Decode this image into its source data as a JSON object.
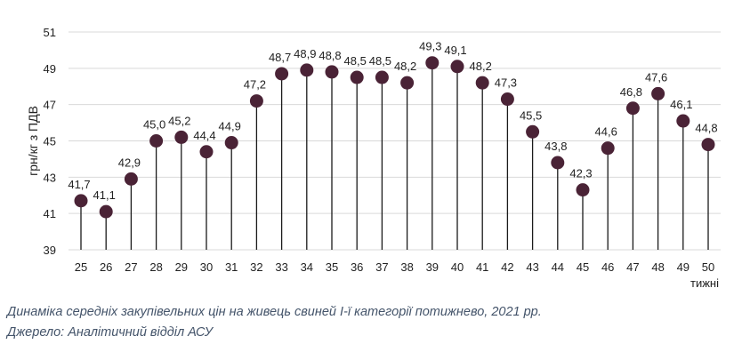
{
  "chart_data": {
    "type": "lollipop",
    "title": "",
    "xlabel": "тижні",
    "ylabel": "грн/кг з ПДВ",
    "ylim": [
      39,
      51
    ],
    "yticks": [
      39,
      41,
      43,
      45,
      47,
      49,
      51
    ],
    "grid": true,
    "categories": [
      "25",
      "26",
      "27",
      "28",
      "29",
      "30",
      "31",
      "32",
      "33",
      "34",
      "35",
      "36",
      "37",
      "38",
      "39",
      "40",
      "41",
      "42",
      "43",
      "44",
      "45",
      "46",
      "47",
      "48",
      "49",
      "50"
    ],
    "values": [
      41.7,
      41.1,
      42.9,
      45.0,
      45.2,
      44.4,
      44.9,
      47.2,
      48.7,
      48.9,
      48.8,
      48.5,
      48.5,
      48.2,
      49.3,
      49.1,
      48.2,
      47.3,
      45.5,
      43.8,
      42.3,
      44.6,
      46.8,
      47.6,
      46.1,
      44.8
    ],
    "labels": [
      "41,7",
      "41,1",
      "42,9",
      "45,0",
      "45,2",
      "44,4",
      "44,9",
      "47,2",
      "48,7",
      "48,9",
      "48,8",
      "48,5",
      "48,5",
      "48,2",
      "49,3",
      "49,1",
      "48,2",
      "47,3",
      "45,5",
      "43,8",
      "42,3",
      "44,6",
      "46,8",
      "47,6",
      "46,1",
      "44,8"
    ],
    "colors": {
      "marker": "#4a2336",
      "stem": "#1a1a1a",
      "grid": "#d9d9d9"
    }
  },
  "caption": "Динаміка середніх закупівельних цін на живець свиней І-ї категорії потижнево, 2021 рр.",
  "source": "Джерело: Аналітичний відділ АСУ"
}
